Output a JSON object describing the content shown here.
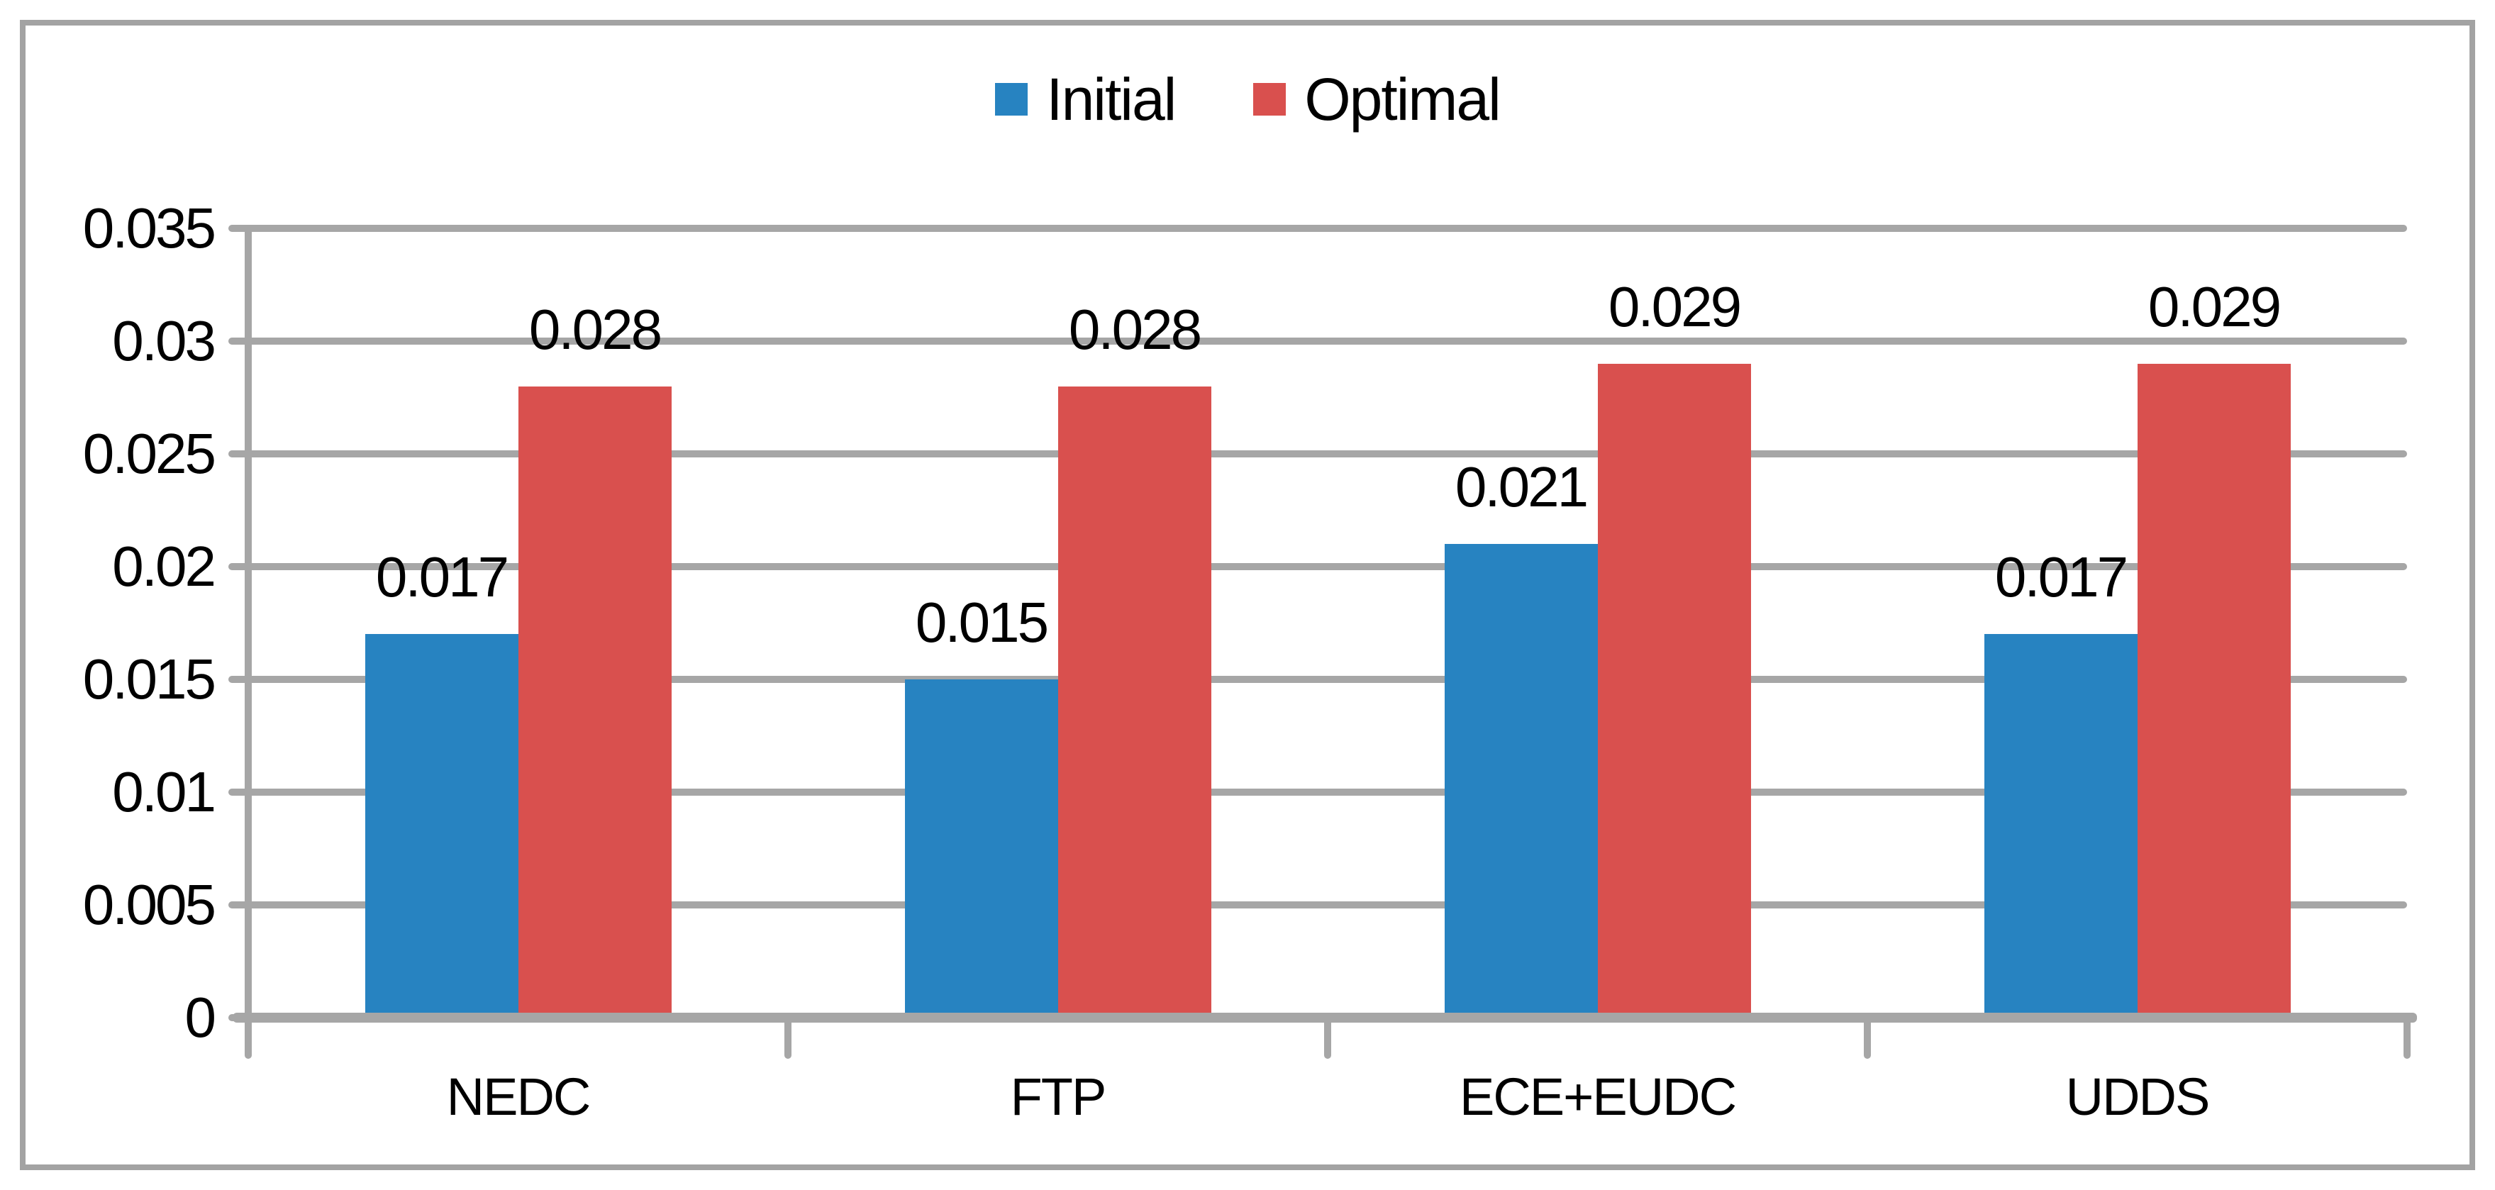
{
  "chart_data": {
    "type": "bar",
    "title": "",
    "xlabel": "",
    "ylabel": "",
    "categories": [
      "NEDC",
      "FTP",
      "ECE+EUDC",
      "UDDS"
    ],
    "series": [
      {
        "name": "Initial",
        "color": "#2783C1",
        "values": [
          0.017,
          0.015,
          0.021,
          0.017
        ],
        "data_labels": [
          "0.017",
          "0.015",
          "0.021",
          "0.017"
        ]
      },
      {
        "name": "Optimal",
        "color": "#D9504E",
        "values": [
          0.028,
          0.028,
          0.029,
          0.029
        ],
        "data_labels": [
          "0.028",
          "0.028",
          "0.029",
          "0.029"
        ]
      }
    ],
    "ylim": [
      0,
      0.035
    ],
    "ytick_step": 0.005,
    "ytick_labels": [
      "0",
      "0.005",
      "0.01",
      "0.015",
      "0.02",
      "0.025",
      "0.03",
      "0.035"
    ],
    "grid": true,
    "legend_position": "top-center",
    "colors": {
      "gridline": "#A6A6A6",
      "axis": "#A6A6A6",
      "frame": "#A3A3A3",
      "text": "#000000",
      "background": "#FFFFFF"
    }
  }
}
